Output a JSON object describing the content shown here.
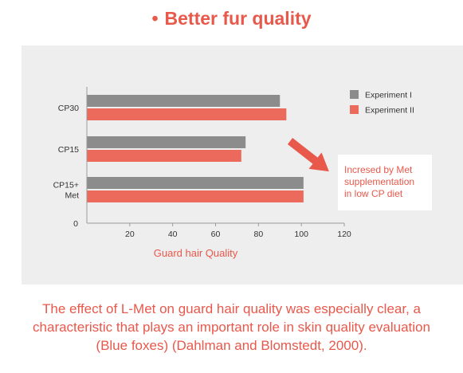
{
  "heading": {
    "bullet": "•",
    "title": "Better fur quality"
  },
  "colors": {
    "accent": "#e8584b",
    "series1": "#8c8c8c",
    "series2": "#ec6a5c"
  },
  "chart_data": {
    "type": "bar",
    "orientation": "horizontal",
    "categories": [
      [
        "CP30"
      ],
      [
        "CP15"
      ],
      [
        "CP15+",
        "Met"
      ]
    ],
    "series": [
      {
        "name": "Experiment I",
        "values": [
          90,
          74,
          101
        ]
      },
      {
        "name": "Experiment II",
        "values": [
          93,
          72,
          101
        ]
      }
    ],
    "xlabel": "Guard hair Quality",
    "xlim": [
      0,
      120
    ],
    "xticks": [
      0,
      20,
      40,
      60,
      80,
      100,
      120
    ],
    "legend": "top-right",
    "grid": false,
    "annotation": [
      "Incresed by Met",
      "supplementation",
      "in low CP diet"
    ]
  },
  "caption": "The effect of L-Met on guard hair quality was especially clear, a characteristic that plays an important role in skin quality evaluation (Blue foxes) (Dahlman and Blomstedt, 2000)."
}
